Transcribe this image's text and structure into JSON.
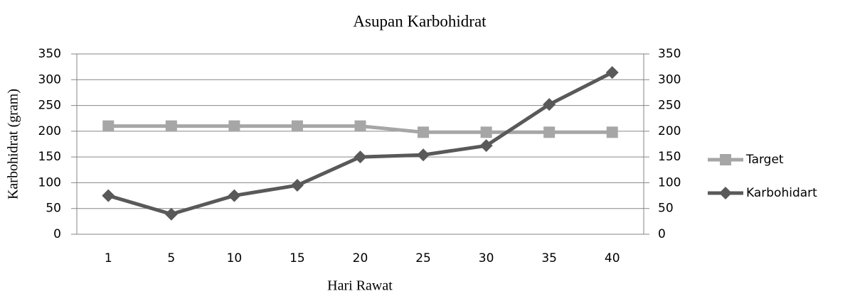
{
  "chart_data": {
    "type": "line",
    "title": "Asupan Karbohidrat",
    "x_label": "Hari Rawat",
    "y_label": "Karbohidrat (gram)",
    "categories": [
      "1",
      "5",
      "10",
      "15",
      "20",
      "25",
      "30",
      "35",
      "40"
    ],
    "series": [
      {
        "name": "Target",
        "color": "#a6a6a6",
        "marker": "square",
        "values": [
          210,
          210,
          210,
          210,
          210,
          198,
          198,
          198,
          198
        ]
      },
      {
        "name": "Karbohidart",
        "color": "#595959",
        "marker": "diamond",
        "values": [
          75,
          39,
          75,
          95,
          150,
          154,
          172,
          252,
          314
        ]
      }
    ],
    "ylim": [
      0,
      350
    ],
    "yticks": [
      0,
      50,
      100,
      150,
      200,
      250,
      300,
      350
    ],
    "y2lim": [
      0,
      350
    ],
    "y2ticks": [
      0,
      50,
      100,
      150,
      200,
      250,
      300,
      350
    ],
    "grid": true,
    "legend": "right"
  }
}
